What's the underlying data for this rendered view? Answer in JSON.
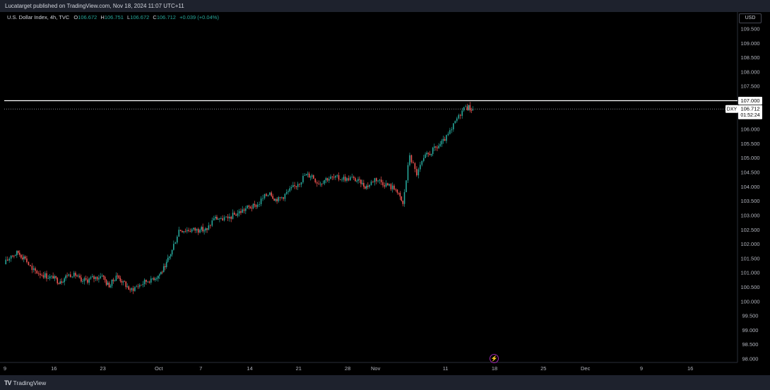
{
  "header": {
    "published_text": "Lucatarget published on TradingView.com, Nov 18, 2024 11:07 UTC+11"
  },
  "legend": {
    "symbol": "U.S. Dollar Index, 4h, TVC",
    "o_label": "O",
    "o_value": "106.672",
    "h_label": "H",
    "h_value": "106.751",
    "l_label": "L",
    "l_value": "106.672",
    "c_label": "C",
    "c_value": "106.712",
    "change": "+0.039 (+0.04%)"
  },
  "currency_button": "USD",
  "footer": {
    "logo_mark": "TV",
    "logo_text": "TradingView"
  },
  "price_tag": {
    "ticker": "DXY",
    "price": "106.712",
    "countdown": "01:52:24"
  },
  "level_tag": "107.000",
  "colors": {
    "up": "#26a69a",
    "down": "#ef5350",
    "level_line": "#ffffff",
    "price_line": "#b2b5be"
  },
  "chart_data": {
    "type": "candlestick",
    "title": "",
    "xlabel": "",
    "ylabel": "",
    "ylim": [
      98.0,
      109.75
    ],
    "y_ticks": [
      "109.500",
      "109.000",
      "108.500",
      "108.000",
      "107.500",
      "107.000",
      "106.500",
      "106.000",
      "105.500",
      "105.000",
      "104.500",
      "104.000",
      "103.500",
      "103.000",
      "102.500",
      "102.000",
      "101.500",
      "101.000",
      "100.500",
      "100.000",
      "99.500",
      "99.000",
      "98.500",
      "98.000"
    ],
    "x_ticks": [
      "9",
      "16",
      "23",
      "Oct",
      "7",
      "14",
      "21",
      "28",
      "Nov",
      "11",
      "18",
      "25",
      "Dec",
      "9",
      "16"
    ],
    "horizontal_level": 107.0,
    "last_price": 106.712,
    "series": [
      {
        "date": "Sep 9",
        "value": 101.3
      },
      {
        "date": "Sep 10",
        "value": 101.6
      },
      {
        "date": "Sep 11",
        "value": 101.7
      },
      {
        "date": "Sep 12",
        "value": 101.5
      },
      {
        "date": "Sep 13",
        "value": 101.1
      },
      {
        "date": "Sep 16",
        "value": 100.8
      },
      {
        "date": "Sep 17",
        "value": 100.7
      },
      {
        "date": "Sep 18",
        "value": 100.9
      },
      {
        "date": "Sep 19",
        "value": 101.0
      },
      {
        "date": "Sep 20",
        "value": 100.7
      },
      {
        "date": "Sep 23",
        "value": 100.9
      },
      {
        "date": "Sep 24",
        "value": 100.5
      },
      {
        "date": "Sep 25",
        "value": 100.9
      },
      {
        "date": "Sep 26",
        "value": 100.7
      },
      {
        "date": "Sep 27",
        "value": 100.4
      },
      {
        "date": "Sep 30",
        "value": 100.8
      },
      {
        "date": "Oct 1",
        "value": 100.9
      },
      {
        "date": "Oct 2",
        "value": 101.2
      },
      {
        "date": "Oct 3",
        "value": 101.8
      },
      {
        "date": "Oct 4",
        "value": 102.5
      },
      {
        "date": "Oct 7",
        "value": 102.5
      },
      {
        "date": "Oct 8",
        "value": 102.5
      },
      {
        "date": "Oct 9",
        "value": 102.9
      },
      {
        "date": "Oct 10",
        "value": 102.9
      },
      {
        "date": "Oct 11",
        "value": 102.9
      },
      {
        "date": "Oct 14",
        "value": 103.3
      },
      {
        "date": "Oct 15",
        "value": 103.3
      },
      {
        "date": "Oct 16",
        "value": 103.6
      },
      {
        "date": "Oct 17",
        "value": 103.8
      },
      {
        "date": "Oct 18",
        "value": 103.5
      },
      {
        "date": "Oct 21",
        "value": 104.1
      },
      {
        "date": "Oct 22",
        "value": 104.4
      },
      {
        "date": "Oct 23",
        "value": 104.4
      },
      {
        "date": "Oct 24",
        "value": 104.1
      },
      {
        "date": "Oct 25",
        "value": 104.3
      },
      {
        "date": "Oct 28",
        "value": 104.3
      },
      {
        "date": "Oct 29",
        "value": 104.3
      },
      {
        "date": "Oct 30",
        "value": 104.1
      },
      {
        "date": "Oct 31",
        "value": 104.0
      },
      {
        "date": "Nov 1",
        "value": 104.3
      },
      {
        "date": "Nov 4",
        "value": 103.9
      },
      {
        "date": "Nov 5",
        "value": 103.4
      },
      {
        "date": "Nov 6",
        "value": 105.1
      },
      {
        "date": "Nov 7",
        "value": 104.4
      },
      {
        "date": "Nov 8",
        "value": 105.0
      },
      {
        "date": "Nov 11",
        "value": 105.6
      },
      {
        "date": "Nov 12",
        "value": 106.0
      },
      {
        "date": "Nov 13",
        "value": 106.5
      },
      {
        "date": "Nov 14",
        "value": 106.8
      },
      {
        "date": "Nov 15",
        "value": 106.7
      }
    ]
  }
}
